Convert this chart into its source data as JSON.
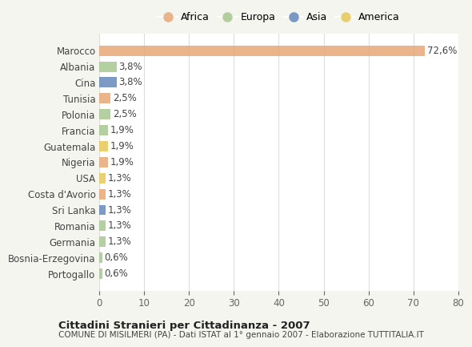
{
  "countries": [
    "Marocco",
    "Albania",
    "Cina",
    "Tunisia",
    "Polonia",
    "Francia",
    "Guatemala",
    "Nigeria",
    "USA",
    "Costa d'Avorio",
    "Sri Lanka",
    "Romania",
    "Germania",
    "Bosnia-Erzegovina",
    "Portogallo"
  ],
  "values": [
    72.6,
    3.8,
    3.8,
    2.5,
    2.5,
    1.9,
    1.9,
    1.9,
    1.3,
    1.3,
    1.3,
    1.3,
    1.3,
    0.6,
    0.6
  ],
  "labels": [
    "72,6%",
    "3,8%",
    "3,8%",
    "2,5%",
    "2,5%",
    "1,9%",
    "1,9%",
    "1,9%",
    "1,3%",
    "1,3%",
    "1,3%",
    "1,3%",
    "1,3%",
    "0,6%",
    "0,6%"
  ],
  "continents": [
    "Africa",
    "Europa",
    "Asia",
    "Africa",
    "Europa",
    "Europa",
    "America",
    "Africa",
    "America",
    "Africa",
    "Asia",
    "Europa",
    "Europa",
    "Europa",
    "Europa"
  ],
  "continent_colors": {
    "Africa": "#E8A878",
    "Europa": "#A8C890",
    "Asia": "#6688BB",
    "America": "#E8C858"
  },
  "legend_order": [
    "Africa",
    "Europa",
    "Asia",
    "America"
  ],
  "title1": "Cittadini Stranieri per Cittadinanza - 2007",
  "title2": "COMUNE DI MISILMERI (PA) - Dati ISTAT al 1° gennaio 2007 - Elaborazione TUTTITALIA.IT",
  "xlim": [
    0,
    80
  ],
  "xticks": [
    0,
    10,
    20,
    30,
    40,
    50,
    60,
    70,
    80
  ],
  "background_color": "#f5f5f0",
  "plot_background": "#ffffff",
  "grid_color": "#dddddd",
  "bar_height": 0.65,
  "label_fontsize": 8.5,
  "tick_fontsize": 8.5
}
